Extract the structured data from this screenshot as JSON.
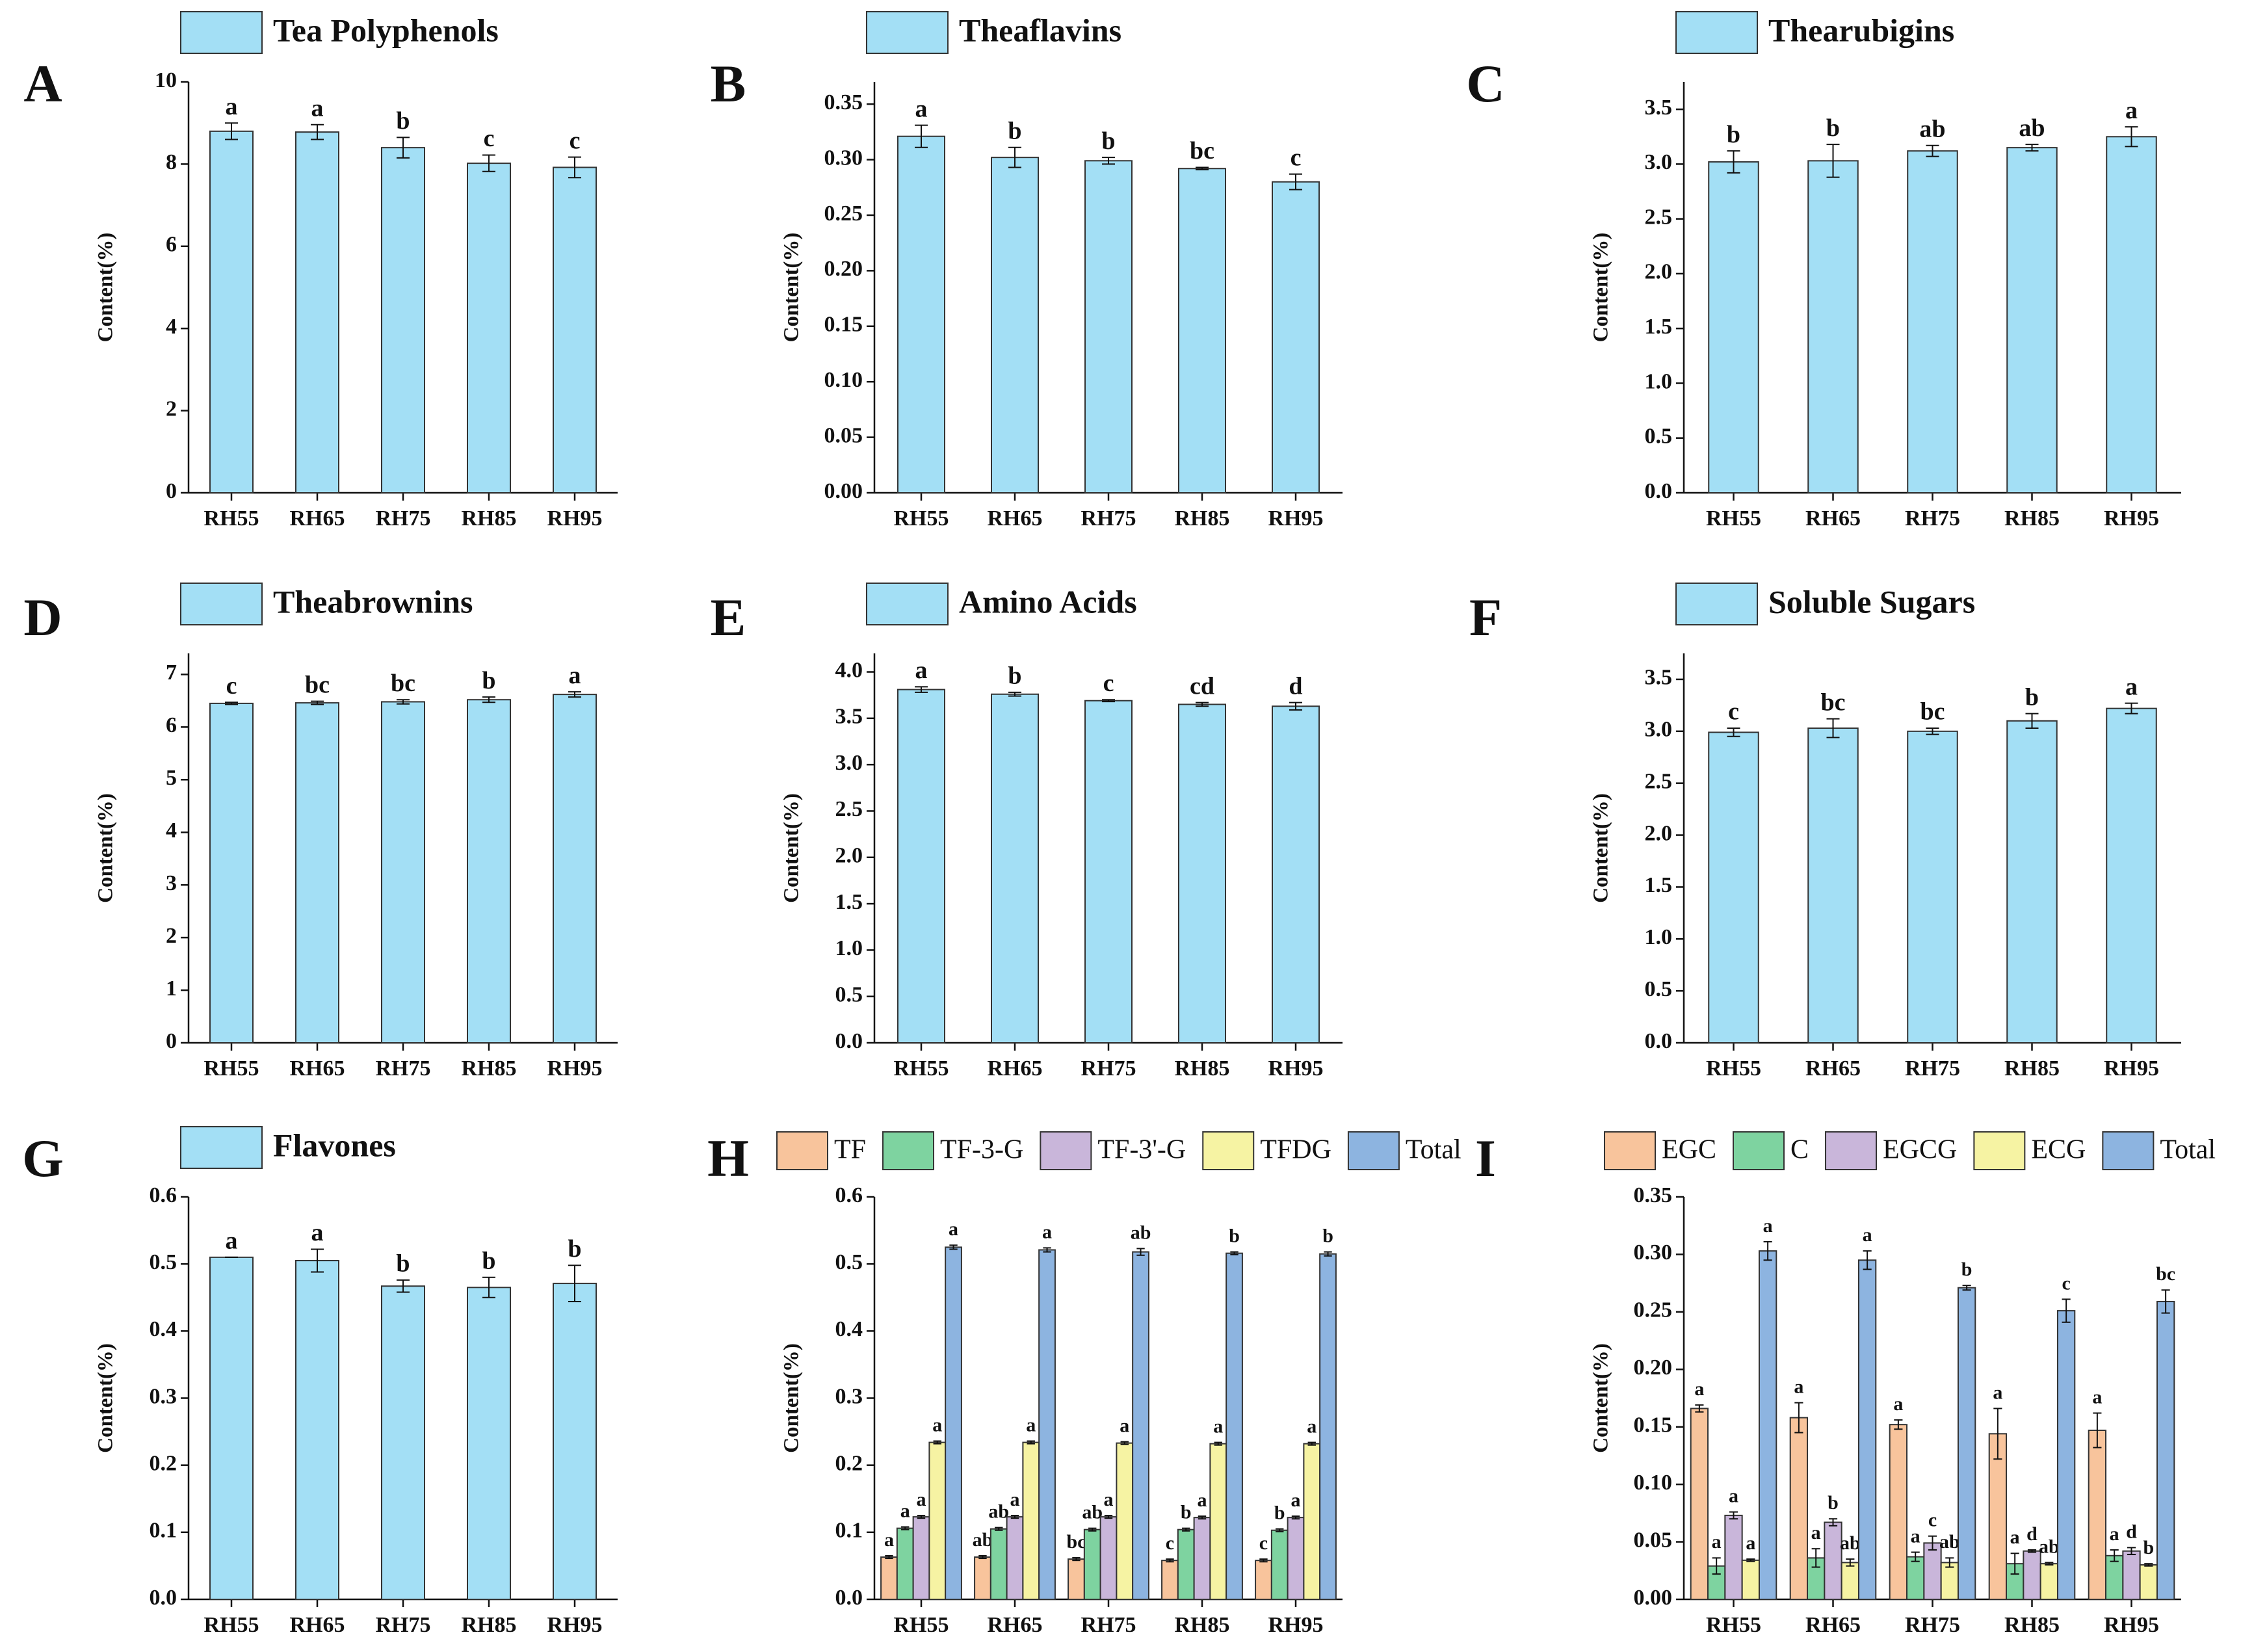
{
  "chart_data": [
    {
      "type": "bar",
      "panel": "A",
      "ylabel": "Content(%)",
      "categories": [
        "RH55",
        "RH65",
        "RH75",
        "RH85",
        "RH95"
      ],
      "ylim": [
        0,
        10
      ],
      "yticks": [
        0,
        2,
        4,
        6,
        8,
        10
      ],
      "series": [
        {
          "name": "Tea Polyphenols",
          "color": "#a3dff5",
          "values": [
            8.8,
            8.78,
            8.4,
            8.02,
            7.92
          ],
          "errors": [
            0.2,
            0.18,
            0.25,
            0.2,
            0.25
          ],
          "letters": [
            "a",
            "a",
            "b",
            "c",
            "c"
          ]
        }
      ]
    },
    {
      "type": "bar",
      "panel": "B",
      "ylabel": "Content(%)",
      "categories": [
        "RH55",
        "RH65",
        "RH75",
        "RH85",
        "RH95"
      ],
      "ylim": [
        0,
        0.37
      ],
      "yticks": [
        {
          "value": 0,
          "label": "0.00"
        },
        0.05,
        {
          "value": 0.1,
          "label": "0.10"
        },
        0.15,
        {
          "value": 0.2,
          "label": "0.20"
        },
        0.25,
        {
          "value": 0.3,
          "label": "0.30"
        },
        0.35
      ],
      "series": [
        {
          "name": "Theaflavins",
          "color": "#a3dff5",
          "values": [
            0.321,
            0.302,
            0.299,
            0.292,
            0.28
          ],
          "errors": [
            0.01,
            0.009,
            0.003,
            0.001,
            0.007
          ],
          "letters": [
            "a",
            "b",
            "b",
            "bc",
            "c"
          ]
        }
      ]
    },
    {
      "type": "bar",
      "panel": "C",
      "ylabel": "Content(%)",
      "categories": [
        "RH55",
        "RH65",
        "RH75",
        "RH85",
        "RH95"
      ],
      "ylim": [
        0,
        3.75
      ],
      "yticks": [
        {
          "value": 0,
          "label": "0.0"
        },
        0.5,
        {
          "value": 1,
          "label": "1.0"
        },
        1.5,
        {
          "value": 2,
          "label": "2.0"
        },
        2.5,
        {
          "value": 3,
          "label": "3.0"
        },
        3.5
      ],
      "series": [
        {
          "name": "Thearubigins",
          "color": "#a3dff5",
          "values": [
            3.02,
            3.03,
            3.12,
            3.15,
            3.25
          ],
          "errors": [
            0.1,
            0.15,
            0.05,
            0.03,
            0.09
          ],
          "letters": [
            "b",
            "b",
            "ab",
            "ab",
            "a"
          ]
        }
      ]
    },
    {
      "type": "bar",
      "panel": "D",
      "ylabel": "Content(%)",
      "categories": [
        "RH55",
        "RH65",
        "RH75",
        "RH85",
        "RH95"
      ],
      "ylim": [
        0,
        7.4
      ],
      "yticks": [
        0,
        1,
        2,
        3,
        4,
        5,
        6,
        7
      ],
      "series": [
        {
          "name": "Theabrownins",
          "color": "#a3dff5",
          "values": [
            6.45,
            6.46,
            6.48,
            6.52,
            6.62
          ],
          "errors": [
            0.02,
            0.03,
            0.04,
            0.05,
            0.05
          ],
          "letters": [
            "c",
            "bc",
            "bc",
            "b",
            "a"
          ]
        }
      ]
    },
    {
      "type": "bar",
      "panel": "E",
      "ylabel": "Content(%)",
      "categories": [
        "RH55",
        "RH65",
        "RH75",
        "RH85",
        "RH95"
      ],
      "ylim": [
        0,
        4.2
      ],
      "yticks": [
        {
          "value": 0,
          "label": "0.0"
        },
        0.5,
        {
          "value": 1,
          "label": "1.0"
        },
        1.5,
        {
          "value": 2,
          "label": "2.0"
        },
        2.5,
        {
          "value": 3,
          "label": "3.0"
        },
        3.5,
        {
          "value": 4,
          "label": "4.0"
        }
      ],
      "series": [
        {
          "name": "Amino Acids",
          "color": "#a3dff5",
          "values": [
            3.81,
            3.76,
            3.69,
            3.65,
            3.63
          ],
          "errors": [
            0.03,
            0.02,
            0.01,
            0.02,
            0.04
          ],
          "letters": [
            "a",
            "b",
            "c",
            "cd",
            "d"
          ]
        }
      ]
    },
    {
      "type": "bar",
      "panel": "F",
      "ylabel": "Content(%)",
      "categories": [
        "RH55",
        "RH65",
        "RH75",
        "RH85",
        "RH95"
      ],
      "ylim": [
        0,
        3.75
      ],
      "yticks": [
        {
          "value": 0,
          "label": "0.0"
        },
        0.5,
        {
          "value": 1,
          "label": "1.0"
        },
        1.5,
        {
          "value": 2,
          "label": "2.0"
        },
        2.5,
        {
          "value": 3,
          "label": "3.0"
        },
        3.5
      ],
      "series": [
        {
          "name": "Soluble Sugars",
          "color": "#a3dff5",
          "values": [
            2.99,
            3.03,
            3.0,
            3.1,
            3.22
          ],
          "errors": [
            0.04,
            0.09,
            0.03,
            0.07,
            0.05
          ],
          "letters": [
            "c",
            "bc",
            "bc",
            "b",
            "a"
          ]
        }
      ]
    },
    {
      "type": "bar",
      "panel": "G",
      "ylabel": "Content(%)",
      "categories": [
        "RH55",
        "RH65",
        "RH75",
        "RH85",
        "RH95"
      ],
      "ylim": [
        0,
        0.6
      ],
      "yticks": [
        {
          "value": 0,
          "label": "0.0"
        },
        0.1,
        0.2,
        0.3,
        0.4,
        0.5,
        0.6
      ],
      "series": [
        {
          "name": "Flavones",
          "color": "#a3dff5",
          "values": [
            0.51,
            0.505,
            0.467,
            0.465,
            0.471
          ],
          "errors": [
            0,
            0.017,
            0.009,
            0.015,
            0.027
          ],
          "letters": [
            "a",
            "a",
            "b",
            "b",
            "b"
          ]
        }
      ]
    },
    {
      "type": "bar",
      "panel": "H",
      "ylabel": "Content(%)",
      "categories": [
        "RH55",
        "RH65",
        "RH75",
        "RH85",
        "RH95"
      ],
      "ylim": [
        0,
        0.6
      ],
      "yticks": [
        {
          "value": 0,
          "label": "0.0"
        },
        0.1,
        0.2,
        0.3,
        0.4,
        0.5,
        0.6
      ],
      "series": [
        {
          "name": "TF",
          "color": "#f8c49c",
          "values": [
            0.063,
            0.063,
            0.06,
            0.058,
            0.058
          ],
          "errors": [
            0.002,
            0.002,
            0.002,
            0.002,
            0.002
          ],
          "letters": [
            "a",
            "ab",
            "bc",
            "c",
            "c"
          ]
        },
        {
          "name": "TF-3-G",
          "color": "#7ed3a0",
          "values": [
            0.106,
            0.105,
            0.104,
            0.104,
            0.103
          ],
          "errors": [
            0.002,
            0.002,
            0.002,
            0.002,
            0.002
          ],
          "letters": [
            "a",
            "ab",
            "ab",
            "b",
            "b"
          ]
        },
        {
          "name": "TF-3'-G",
          "color": "#c9b6da",
          "values": [
            0.123,
            0.123,
            0.123,
            0.122,
            0.122
          ],
          "errors": [
            0.002,
            0.002,
            0.002,
            0.002,
            0.002
          ],
          "letters": [
            "a",
            "a",
            "a",
            "a",
            "a"
          ]
        },
        {
          "name": "TFDG",
          "color": "#f6f3a3",
          "values": [
            0.234,
            0.234,
            0.233,
            0.232,
            0.232
          ],
          "errors": [
            0.002,
            0.002,
            0.002,
            0.002,
            0.002
          ],
          "letters": [
            "a",
            "a",
            "a",
            "a",
            "a"
          ]
        },
        {
          "name": "Total",
          "color": "#8db4e0",
          "values": [
            0.525,
            0.521,
            0.518,
            0.516,
            0.515
          ],
          "errors": [
            0.003,
            0.003,
            0.005,
            0.002,
            0.003
          ],
          "letters": [
            "a",
            "a",
            "ab",
            "b",
            "b"
          ]
        }
      ]
    },
    {
      "type": "bar",
      "panel": "I",
      "ylabel": "Content(%)",
      "categories": [
        "RH55",
        "RH65",
        "RH75",
        "RH85",
        "RH95"
      ],
      "ylim": [
        0,
        0.35
      ],
      "yticks": [
        {
          "value": 0,
          "label": "0.00"
        },
        0.05,
        {
          "value": 0.1,
          "label": "0.10"
        },
        0.15,
        {
          "value": 0.2,
          "label": "0.20"
        },
        0.25,
        {
          "value": 0.3,
          "label": "0.30"
        },
        0.35
      ],
      "series": [
        {
          "name": "EGC",
          "color": "#f8c49c",
          "values": [
            0.166,
            0.158,
            0.152,
            0.144,
            0.147
          ],
          "errors": [
            0.003,
            0.013,
            0.004,
            0.022,
            0.015
          ],
          "letters": [
            "a",
            "a",
            "a",
            "a",
            "a"
          ]
        },
        {
          "name": "C",
          "color": "#7ed3a0",
          "values": [
            0.029,
            0.036,
            0.037,
            0.031,
            0.038
          ],
          "errors": [
            0.007,
            0.008,
            0.004,
            0.009,
            0.005
          ],
          "letters": [
            "a",
            "a",
            "a",
            "a",
            "a"
          ]
        },
        {
          "name": "EGCG",
          "color": "#c9b6da",
          "values": [
            0.073,
            0.067,
            0.049,
            0.042,
            0.042
          ],
          "errors": [
            0.003,
            0.003,
            0.006,
            0.001,
            0.003
          ],
          "letters": [
            "a",
            "b",
            "c",
            "d",
            "d"
          ]
        },
        {
          "name": "ECG",
          "color": "#f6f3a3",
          "values": [
            0.034,
            0.032,
            0.032,
            0.031,
            0.03
          ],
          "errors": [
            0.001,
            0.003,
            0.004,
            0.001,
            0.001
          ],
          "letters": [
            "a",
            "ab",
            "ab",
            "ab",
            "b"
          ]
        },
        {
          "name": "Total",
          "color": "#8db4e0",
          "values": [
            0.303,
            0.295,
            0.271,
            0.251,
            0.259
          ],
          "errors": [
            0.008,
            0.008,
            0.002,
            0.01,
            0.01
          ],
          "letters": [
            "a",
            "a",
            "b",
            "c",
            "bc"
          ]
        }
      ]
    }
  ]
}
